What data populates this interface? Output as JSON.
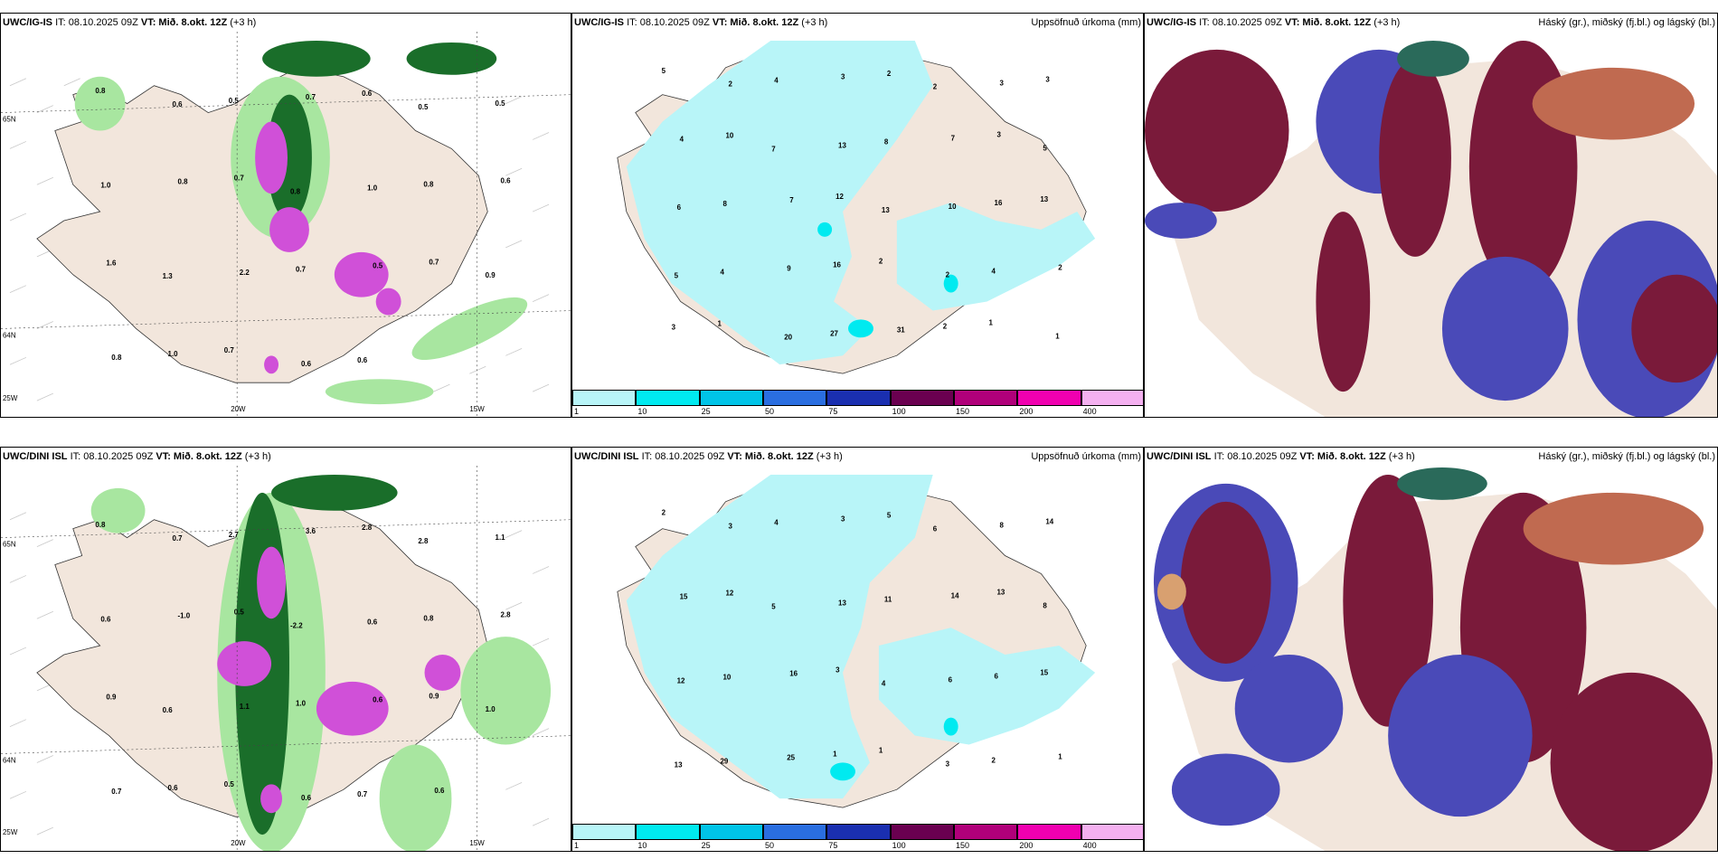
{
  "panels": {
    "top_left": {
      "model": "UWC/IG-IS",
      "it_label": "IT: 08.10.2025 09Z",
      "vt_label": "VT: Mið. 8.okt. 12Z",
      "lead": "(+3 h)",
      "right_title": ""
    },
    "top_mid": {
      "model": "UWC/IG-IS",
      "it_label": "IT: 08.10.2025 09Z",
      "vt_label": "VT: Mið. 8.okt. 12Z",
      "lead": "(+3 h)",
      "right_title": "Uppsöfnuð úrkoma (mm)"
    },
    "top_right": {
      "model": "UWC/IG-IS",
      "it_label": "IT: 08.10.2025 09Z",
      "vt_label": "VT: Mið. 8.okt. 12Z",
      "lead": "(+3 h)",
      "right_title": "Háský (gr.), miðský (fj.bl.) og lágský (bl.)"
    },
    "bot_left": {
      "model": "UWC/DINI ISL",
      "it_label": "IT: 08.10.2025 09Z",
      "vt_label": "VT: Mið. 8.okt. 12Z",
      "lead": "(+3 h)",
      "right_title": ""
    },
    "bot_mid": {
      "model": "UWC/DINI ISL",
      "it_label": "IT: 08.10.2025 09Z",
      "vt_label": "VT: Mið. 8.okt. 12Z",
      "lead": "(+3 h)",
      "right_title": "Uppsöfnuð úrkoma (mm)"
    },
    "bot_right": {
      "model": "UWC/DINI ISL",
      "it_label": "IT: 08.10.2025 09Z",
      "vt_label": "VT: Mið. 8.okt. 12Z",
      "lead": "(+3 h)",
      "right_title": "Háský (gr.), miðský (fj.bl.) og lágský (bl.)"
    }
  },
  "axes": {
    "lon_20": "20W",
    "lon_15": "15W",
    "lat_65": "65N",
    "lat_64": "64N",
    "lon_25": "25W"
  },
  "colorbar": {
    "labels": [
      "1",
      "10",
      "25",
      "50",
      "75",
      "100",
      "150",
      "200",
      "400"
    ],
    "colors": [
      "#b8f5f8",
      "#00eaf0",
      "#00c4e8",
      "#2a6ee0",
      "#1a2fb0",
      "#6a0050",
      "#b0007a",
      "#f000b0",
      "#f4b0f0"
    ]
  },
  "precip_top": [
    "5",
    "2",
    "4",
    "3",
    "2",
    "2",
    "3",
    "3",
    "4",
    "10",
    "7",
    "13",
    "8",
    "7",
    "3",
    "5",
    "6",
    "8",
    "7",
    "12",
    "13",
    "10",
    "16",
    "13",
    "5",
    "4",
    "9",
    "16",
    "2",
    "2",
    "4",
    "2",
    "3",
    "1",
    "20",
    "27",
    "31",
    "2",
    "1",
    "1"
  ],
  "precip_bot": [
    "2",
    "3",
    "4",
    "3",
    "5",
    "6",
    "8",
    "14",
    "15",
    "12",
    "5",
    "13",
    "11",
    "14",
    "13",
    "8",
    "12",
    "10",
    "16",
    "3",
    "4",
    "6",
    "6",
    "15",
    "13",
    "29",
    "25",
    "1",
    "1",
    "3",
    "2",
    "1"
  ],
  "temp_top": [
    "0.8",
    "0.6",
    "0.5",
    "0.7",
    "0.6",
    "0.5",
    "0.5",
    "1.0",
    "0.8",
    "0.7",
    "0.8",
    "1.0",
    "0.8",
    "0.6",
    "1.6",
    "1.3",
    "2.2",
    "0.7",
    "0.5",
    "0.7",
    "0.9",
    "0.8",
    "1.0",
    "0.7",
    "0.6",
    "0.6"
  ],
  "temp_bot": [
    "0.8",
    "0.7",
    "2.7",
    "3.6",
    "2.8",
    "2.8",
    "1.1",
    "0.6",
    "-1.0",
    "0.5",
    "-2.2",
    "0.6",
    "0.8",
    "2.8",
    "0.9",
    "0.6",
    "1.1",
    "1.0",
    "0.6",
    "0.9",
    "1.0",
    "0.7",
    "0.6",
    "0.5",
    "0.6",
    "0.7",
    "0.6"
  ],
  "colors": {
    "land": "#f2e6dc",
    "precip_light": "#b8f5f8",
    "green_light": "#a8e6a0",
    "green_dark": "#1a6e2a",
    "magenta": "#d050d8",
    "maroon": "#7a1a3a",
    "blue_cloud": "#4a4ab8",
    "salmon": "#c06a50",
    "teal": "#2a6a5a"
  }
}
